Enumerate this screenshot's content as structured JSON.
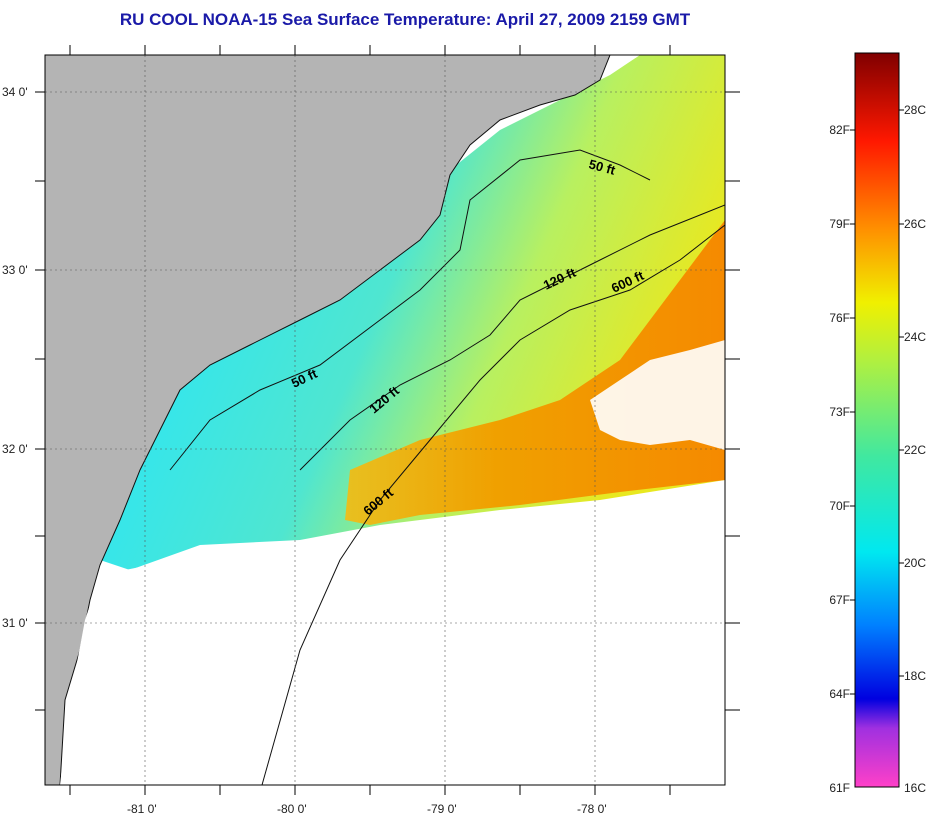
{
  "title": "RU COOL  NOAA-15  Sea Surface Temperature:  April 27, 2009 2159 GMT",
  "map": {
    "lat_labels": [
      "34 0'",
      "33 0'",
      "32 0'",
      "31 0'"
    ],
    "lon_labels": [
      "-81 0'",
      "-80 0'",
      "-79 0'",
      "-78 0'"
    ],
    "isobath_labels": [
      "50 ft",
      "120 ft",
      "600 ft",
      "50 ft",
      "120 ft",
      "600 ft"
    ]
  },
  "colorbar": {
    "fahrenheit_labels": [
      "82F",
      "79F",
      "76F",
      "73F",
      "70F",
      "67F",
      "64F",
      "61F"
    ],
    "celsius_labels": [
      "28C",
      "26C",
      "24C",
      "22C",
      "20C",
      "18C",
      "16C"
    ]
  },
  "colors": {
    "title": "#1a1aa8",
    "land": "#b4b4b4",
    "cloud": "#ffffff",
    "water_cool": "#2fe0f0",
    "water_warm": "#f0a000"
  }
}
